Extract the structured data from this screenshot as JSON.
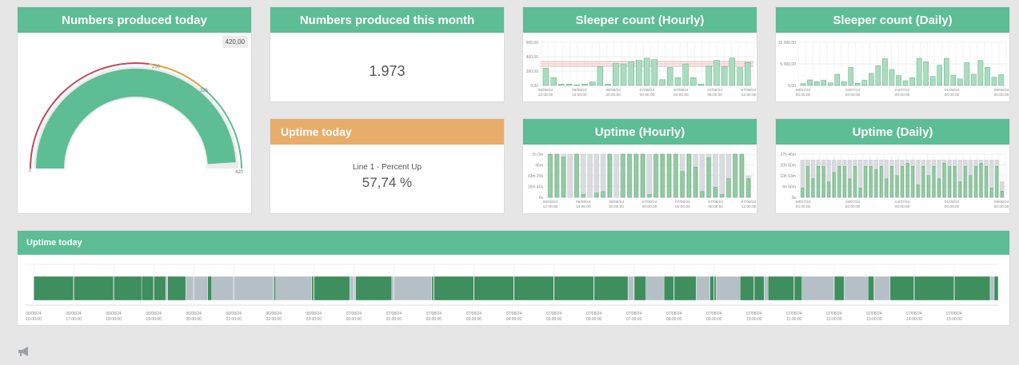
{
  "cards": {
    "produced_today": {
      "title": "Numbers produced today",
      "max_badge": "420,00",
      "gauge_labels": [
        "0",
        "250",
        "325",
        "420"
      ],
      "gauge_value_fraction": 0.98
    },
    "produced_month": {
      "title": "Numbers produced this month",
      "value": "1.973"
    },
    "uptime_today_small": {
      "title": "Uptime today",
      "label": "Line 1 - Percent Up",
      "value": "57,74 %"
    },
    "sleeper_hourly": {
      "title": "Sleeper count (Hourly)"
    },
    "sleeper_daily": {
      "title": "Sleeper count (Daily)"
    },
    "uptime_hourly": {
      "title": "Uptime (Hourly)"
    },
    "uptime_daily": {
      "title": "Uptime (Daily)"
    },
    "uptime_timeline": {
      "title": "Uptime today"
    }
  },
  "colors": {
    "header_green": "#5dbd95",
    "header_orange": "#e8ad6a",
    "bar_green": "#a9ddc0",
    "bar_green_dark": "#4e9e6b",
    "bar_grey": "#d9dcde",
    "timeline_up": "#3e8e5e",
    "timeline_down": "#b5c0c6",
    "gauge_fill": "#5dbd95",
    "ref_line": "#e4a6a6"
  },
  "chart_data": [
    {
      "id": "sleeper-hourly",
      "type": "bar",
      "y_ticks": [
        "600,00",
        "400,00",
        "200,00",
        "0,00"
      ],
      "ylim": [
        0,
        600
      ],
      "x_ticks": [
        "06/08/24\n12:00:00",
        "06/08/24\n16:00:00",
        "06/08/24\n20:00:00",
        "07/08/24\n00:00:00",
        "07/08/24\n04:00:00",
        "07/08/24\n08:00:00",
        "07/08/24\n12:00:00"
      ],
      "values": [
        240,
        110,
        20,
        20,
        10,
        20,
        50,
        260,
        20,
        310,
        300,
        330,
        350,
        380,
        360,
        80,
        250,
        110,
        300,
        110,
        20,
        270,
        350,
        260,
        380,
        250,
        320
      ]
    },
    {
      "id": "sleeper-daily",
      "type": "bar",
      "y_ticks": [
        "10.000,00",
        "5.000,00",
        "0,00"
      ],
      "ylim": [
        0,
        10000
      ],
      "x_ticks": [
        "08/07/24\n00:00:00",
        "16/07/24\n00:00:00",
        "24/07/24\n00:00:00",
        "01/08/24\n00:00:00",
        "09/08/24\n00:00:00"
      ],
      "values": [
        400,
        1300,
        900,
        1200,
        600,
        2600,
        900,
        4200,
        500,
        1200,
        2800,
        4600,
        6200,
        3700,
        2300,
        1100,
        1800,
        6300,
        5500,
        2100,
        4700,
        6300,
        2400,
        1500,
        5300,
        2600,
        5800,
        4200,
        1900,
        2500
      ]
    },
    {
      "id": "uptime-hourly",
      "type": "bar",
      "y_ticks": [
        "1h 0m",
        "45m",
        "33m 20s",
        "16m 40s",
        "0s"
      ],
      "ylim": [
        0,
        60
      ],
      "x_ticks": [
        "06/08/24\n12:00:00",
        "06/08/24\n16:00:00",
        "06/08/24\n20:00:00",
        "07/08/24\n00:00:00",
        "07/08/24\n04:00:00",
        "07/08/24\n08:00:00",
        "07/08/24\n12:00:00"
      ],
      "values": [
        60,
        60,
        56,
        0,
        60,
        4,
        0,
        6,
        8,
        60,
        0,
        60,
        60,
        60,
        60,
        4,
        60,
        60,
        60,
        60,
        36,
        60,
        42,
        8,
        55,
        14,
        4,
        26,
        60,
        60,
        26
      ],
      "totals": [
        60,
        60,
        60,
        60,
        60,
        60,
        60,
        60,
        60,
        60,
        60,
        60,
        60,
        60,
        60,
        60,
        60,
        60,
        60,
        60,
        60,
        60,
        60,
        60,
        60,
        60,
        60,
        60,
        60,
        60,
        30
      ]
    },
    {
      "id": "uptime-daily",
      "type": "bar",
      "y_ticks": [
        "27h 46m",
        "20h 50m",
        "13h 53m",
        "6h 56m",
        "0s"
      ],
      "ylim": [
        0,
        27.8
      ],
      "x_ticks": [
        "08/07/24\n00:00:00",
        "16/07/24\n00:00:00",
        "24/07/24\n00:00:00",
        "01/08/24\n00:00:00",
        "09/08/24\n00:00:00"
      ],
      "values": [
        6,
        20,
        12,
        20,
        20,
        10,
        16,
        20,
        20,
        12,
        20,
        6,
        20,
        20,
        18,
        20,
        12,
        20,
        14,
        20,
        22,
        20,
        8,
        20,
        14,
        20,
        12,
        22,
        20,
        20,
        10,
        20,
        14,
        20,
        22,
        20,
        6,
        20,
        4
      ],
      "totals": [
        24,
        24,
        24,
        24,
        24,
        24,
        24,
        24,
        24,
        24,
        24,
        24,
        24,
        24,
        24,
        24,
        24,
        24,
        24,
        24,
        24,
        24,
        24,
        24,
        24,
        24,
        24,
        24,
        24,
        24,
        24,
        24,
        24,
        24,
        24,
        24,
        24,
        24,
        10
      ]
    },
    {
      "id": "uptime-timeline",
      "type": "bar",
      "x_ticks": [
        "06/08/24\n16:00:00",
        "06/08/24\n17:00:00",
        "06/08/24\n18:00:00",
        "06/08/24\n19:00:00",
        "06/08/24\n20:00:00",
        "06/08/24\n21:00:00",
        "06/08/24\n22:00:00",
        "06/08/24\n23:00:00",
        "07/08/24\n00:00:00",
        "07/08/24\n01:00:00",
        "07/08/24\n02:00:00",
        "07/08/24\n03:00:00",
        "07/08/24\n04:00:00",
        "07/08/24\n05:00:00",
        "07/08/24\n06:00:00",
        "07/08/24\n07:00:00",
        "07/08/24\n08:00:00",
        "07/08/24\n09:00:00",
        "07/08/24\n10:00:00",
        "07/08/24\n11:00:00",
        "07/08/24\n12:00:00",
        "07/08/24\n13:00:00",
        "07/08/24\n14:00:00",
        "07/08/24\n15:00:00"
      ],
      "segments": [
        {
          "start": 0,
          "end": 2.7,
          "state": "up"
        },
        {
          "start": 2.7,
          "end": 3.3,
          "state": "up"
        },
        {
          "start": 3.3,
          "end": 3.35,
          "state": "down"
        },
        {
          "start": 3.35,
          "end": 3.8,
          "state": "up"
        },
        {
          "start": 3.8,
          "end": 4.35,
          "state": "down"
        },
        {
          "start": 4.35,
          "end": 4.45,
          "state": "up"
        },
        {
          "start": 4.45,
          "end": 6.0,
          "state": "down"
        },
        {
          "start": 6.0,
          "end": 6.05,
          "state": "up"
        },
        {
          "start": 6.05,
          "end": 6.95,
          "state": "down"
        },
        {
          "start": 6.95,
          "end": 7.9,
          "state": "up"
        },
        {
          "start": 7.9,
          "end": 8.05,
          "state": "down"
        },
        {
          "start": 8.05,
          "end": 8.95,
          "state": "up"
        },
        {
          "start": 8.95,
          "end": 9.95,
          "state": "down"
        },
        {
          "start": 9.95,
          "end": 14.85,
          "state": "up"
        },
        {
          "start": 14.85,
          "end": 15.0,
          "state": "down"
        },
        {
          "start": 15.0,
          "end": 15.3,
          "state": "up"
        },
        {
          "start": 15.3,
          "end": 15.75,
          "state": "down"
        },
        {
          "start": 15.75,
          "end": 16.55,
          "state": "up"
        },
        {
          "start": 16.55,
          "end": 16.9,
          "state": "down"
        },
        {
          "start": 16.9,
          "end": 17.05,
          "state": "up"
        },
        {
          "start": 17.05,
          "end": 17.65,
          "state": "down"
        },
        {
          "start": 17.65,
          "end": 18.25,
          "state": "up"
        },
        {
          "start": 18.25,
          "end": 18.35,
          "state": "down"
        },
        {
          "start": 18.35,
          "end": 19.2,
          "state": "up"
        },
        {
          "start": 19.2,
          "end": 20.0,
          "state": "down"
        },
        {
          "start": 20.0,
          "end": 20.25,
          "state": "up"
        },
        {
          "start": 20.25,
          "end": 20.85,
          "state": "down"
        },
        {
          "start": 20.85,
          "end": 21.0,
          "state": "up"
        },
        {
          "start": 21.0,
          "end": 21.4,
          "state": "down"
        },
        {
          "start": 21.4,
          "end": 23.9,
          "state": "up"
        },
        {
          "start": 23.9,
          "end": 24.0,
          "state": "down"
        },
        {
          "start": 24.0,
          "end": 24.1,
          "state": "up"
        }
      ],
      "xlim": [
        -0.2,
        24.1
      ]
    }
  ]
}
